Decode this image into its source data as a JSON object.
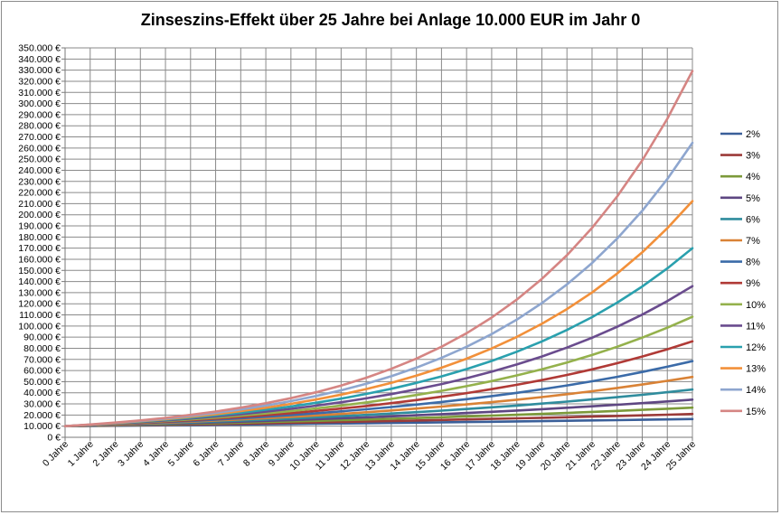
{
  "chart_data": {
    "type": "line",
    "title": "Zinseszins-Effekt  über 25 Jahre bei Anlage 10.000 EUR im Jahr 0",
    "xlabel": "",
    "ylabel": "",
    "principal": 10000,
    "categories": [
      "0 Jahre",
      "1 Jahre",
      "2 Jahre",
      "3 Jahre",
      "4 Jahre",
      "5 Jahre",
      "6 Jahre",
      "7 Jahre",
      "8 Jahre",
      "9 Jahre",
      "10 Jahre",
      "11 Jahre",
      "12 Jahre",
      "13 Jahre",
      "14 Jahre",
      "15 Jahre",
      "16 Jahre",
      "17 Jahre",
      "18 Jahre",
      "19 Jahre",
      "20 Jahre",
      "21 Jahre",
      "22 Jahre",
      "23 Jahre",
      "24 Jahre",
      "25 Jahre"
    ],
    "ylim": [
      0,
      350000
    ],
    "yticks": [
      "0 €",
      "10.000 €",
      "20.000 €",
      "30.000 €",
      "40.000 €",
      "50.000 €",
      "60.000 €",
      "70.000 €",
      "80.000 €",
      "90.000 €",
      "100.000 €",
      "110.000 €",
      "120.000 €",
      "130.000 €",
      "140.000 €",
      "150.000 €",
      "160.000 €",
      "170.000 €",
      "180.000 €",
      "190.000 €",
      "200.000 €",
      "210.000 €",
      "220.000 €",
      "230.000 €",
      "240.000 €",
      "250.000 €",
      "260.000 €",
      "270.000 €",
      "280.000 €",
      "290.000 €",
      "300.000 €",
      "310.000 €",
      "320.000 €",
      "330.000 €",
      "340.000 €",
      "350.000 €"
    ],
    "grid": true,
    "legend_position": "right",
    "series": [
      {
        "name": "2%",
        "rate": 0.02,
        "color": "#3a5f99",
        "values": [
          10000,
          10200,
          10404,
          10612,
          10824,
          11041,
          11262,
          11487,
          11717,
          11951,
          12190,
          12434,
          12682,
          12936,
          13195,
          13459,
          13728,
          14002,
          14282,
          14568,
          14859,
          15157,
          15460,
          15769,
          16084,
          16406
        ]
      },
      {
        "name": "3%",
        "rate": 0.03,
        "color": "#9b3a38",
        "values": [
          10000,
          10300,
          10609,
          10927,
          11255,
          11593,
          11941,
          12299,
          12668,
          13048,
          13439,
          13842,
          14258,
          14685,
          15126,
          15580,
          16047,
          16528,
          17024,
          17535,
          18061,
          18603,
          19161,
          19736,
          20328,
          20938
        ]
      },
      {
        "name": "4%",
        "rate": 0.04,
        "color": "#7c9a3a",
        "values": [
          10000,
          10400,
          10816,
          11249,
          11699,
          12167,
          12653,
          13159,
          13686,
          14233,
          14802,
          15395,
          16010,
          16651,
          17317,
          18009,
          18730,
          19479,
          20258,
          21068,
          21911,
          22788,
          23699,
          24647,
          25633,
          26658
        ]
      },
      {
        "name": "5%",
        "rate": 0.05,
        "color": "#5e4682",
        "values": [
          10000,
          10500,
          11025,
          11576,
          12155,
          12763,
          13401,
          14071,
          14775,
          15513,
          16289,
          17103,
          17959,
          18856,
          19799,
          20789,
          21829,
          22920,
          24066,
          25270,
          26533,
          27860,
          29253,
          30715,
          32251,
          33864
        ]
      },
      {
        "name": "6%",
        "rate": 0.06,
        "color": "#2f8c9d",
        "values": [
          10000,
          10600,
          11236,
          11910,
          12625,
          13382,
          14185,
          15036,
          15938,
          16895,
          17908,
          18983,
          20122,
          21329,
          22609,
          23966,
          25404,
          26928,
          28543,
          30256,
          32071,
          33996,
          36035,
          38197,
          40489,
          42919
        ]
      },
      {
        "name": "7%",
        "rate": 0.07,
        "color": "#d98236",
        "values": [
          10000,
          10700,
          11449,
          12250,
          13108,
          14026,
          15007,
          16058,
          17182,
          18385,
          19672,
          21049,
          22522,
          24098,
          25785,
          27590,
          29522,
          31588,
          33799,
          36165,
          38697,
          41406,
          44304,
          47405,
          50724,
          54274
        ]
      },
      {
        "name": "8%",
        "rate": 0.08,
        "color": "#3b6ba8",
        "values": [
          10000,
          10800,
          11664,
          12597,
          13605,
          14693,
          15869,
          17138,
          18509,
          19990,
          21589,
          23316,
          25182,
          27196,
          29372,
          31722,
          34259,
          37000,
          39960,
          43157,
          46610,
          50338,
          54365,
          58715,
          63412,
          68485
        ]
      },
      {
        "name": "9%",
        "rate": 0.09,
        "color": "#b03a36",
        "values": [
          10000,
          10900,
          11881,
          12950,
          14116,
          15386,
          16771,
          18280,
          19926,
          21719,
          23674,
          25804,
          28127,
          30658,
          33417,
          36425,
          39703,
          43276,
          47171,
          51417,
          56044,
          61088,
          66586,
          72579,
          79111,
          86231
        ]
      },
      {
        "name": "10%",
        "rate": 0.1,
        "color": "#94b14c",
        "values": [
          10000,
          11000,
          12100,
          13310,
          14641,
          16105,
          17716,
          19487,
          21436,
          23579,
          25937,
          28531,
          31384,
          34523,
          37975,
          41772,
          45950,
          50545,
          55599,
          61159,
          67275,
          74002,
          81403,
          89543,
          98497,
          108347
        ]
      },
      {
        "name": "11%",
        "rate": 0.11,
        "color": "#6a4c8e",
        "values": [
          10000,
          11100,
          12321,
          13676,
          15181,
          16851,
          18704,
          20762,
          23045,
          25580,
          28394,
          31518,
          34985,
          38833,
          43104,
          47846,
          53109,
          58951,
          65436,
          72633,
          80623,
          89492,
          99336,
          110263,
          122392,
          135855
        ]
      },
      {
        "name": "12%",
        "rate": 0.12,
        "color": "#2aa0ae",
        "values": [
          10000,
          11200,
          12544,
          14049,
          15735,
          17623,
          19738,
          22107,
          24760,
          27731,
          31058,
          34785,
          38960,
          43635,
          48871,
          54736,
          61304,
          68660,
          76900,
          86128,
          96463,
          108038,
          121003,
          135523,
          151786,
          170001
        ]
      },
      {
        "name": "13%",
        "rate": 0.13,
        "color": "#f2903a",
        "values": [
          10000,
          11300,
          12769,
          14429,
          16305,
          18424,
          20820,
          23526,
          26584,
          30040,
          33946,
          38359,
          43345,
          48980,
          55348,
          62543,
          70673,
          79861,
          90243,
          101974,
          115231,
          130211,
          147138,
          166266,
          187881,
          212305
        ]
      },
      {
        "name": "14%",
        "rate": 0.14,
        "color": "#8ea6cf",
        "values": [
          10000,
          11400,
          12996,
          14815,
          16890,
          19254,
          21950,
          25023,
          28526,
          32519,
          37072,
          42262,
          48179,
          54924,
          62613,
          71379,
          81372,
          92765,
          105752,
          120557,
          137435,
          156676,
          178610,
          203616,
          232122,
          264619
        ]
      },
      {
        "name": "15%",
        "rate": 0.15,
        "color": "#d58583",
        "values": [
          10000,
          11500,
          13225,
          15209,
          17490,
          20114,
          23131,
          26600,
          30590,
          35179,
          40456,
          46524,
          53503,
          61528,
          70757,
          81371,
          93576,
          107613,
          123755,
          142318,
          163665,
          188215,
          216447,
          248915,
          286252,
          329190
        ]
      }
    ]
  }
}
